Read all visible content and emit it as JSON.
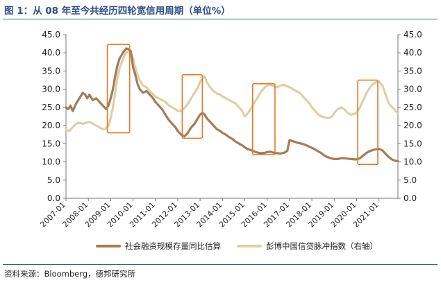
{
  "header": {
    "title": "图 1：从 08 年至今共经历四轮宽信用周期（单位%）"
  },
  "footer": {
    "source": "资料来源：Bloomberg，德邦研究所"
  },
  "colors": {
    "series1": "#a47c56",
    "series2": "#ddd0a4",
    "highlight": "#e8782a",
    "axis": "#777777",
    "header": "#2e4f8a"
  },
  "chart_data": {
    "type": "line",
    "title": "",
    "xlabel": "",
    "ylabel": "",
    "ylim_left": [
      0,
      45
    ],
    "ylim_right": [
      0,
      45
    ],
    "y_ticks_left": [
      "0.0",
      "5.0",
      "10.0",
      "15.0",
      "20.0",
      "25.0",
      "30.0",
      "35.0",
      "40.0",
      "45.0"
    ],
    "y_ticks_right": [
      "0.0",
      "5.0",
      "10.0",
      "15.0",
      "20.0",
      "25.0",
      "30.0",
      "35.0",
      "40.0",
      "45.0"
    ],
    "x_ticks": [
      "2007-01",
      "2008-01",
      "2009-01",
      "2010-01",
      "2011-01",
      "2012-01",
      "2013-01",
      "2014-01",
      "2015-01",
      "2016-01",
      "2017-01",
      "2018-01",
      "2019-01",
      "2020-01",
      "2021-01"
    ],
    "x_range": [
      2007.0,
      2021.85
    ],
    "legend_position": "bottom",
    "series": [
      {
        "name": "社会融资规模存量同比估算",
        "axis": "left",
        "points": [
          [
            2007.0,
            25
          ],
          [
            2007.1,
            24.5
          ],
          [
            2007.2,
            25.5
          ],
          [
            2007.3,
            24
          ],
          [
            2007.45,
            26
          ],
          [
            2007.6,
            27.5
          ],
          [
            2007.75,
            29
          ],
          [
            2007.85,
            28.5
          ],
          [
            2007.95,
            27.5
          ],
          [
            2008.05,
            28.5
          ],
          [
            2008.2,
            27
          ],
          [
            2008.35,
            27.5
          ],
          [
            2008.5,
            26.5
          ],
          [
            2008.65,
            25.5
          ],
          [
            2008.8,
            24.5
          ],
          [
            2008.9,
            25.5
          ],
          [
            2009.0,
            27.5
          ],
          [
            2009.1,
            30
          ],
          [
            2009.2,
            33.5
          ],
          [
            2009.3,
            36.5
          ],
          [
            2009.4,
            38.5
          ],
          [
            2009.5,
            39.5
          ],
          [
            2009.6,
            40.5
          ],
          [
            2009.7,
            41.2
          ],
          [
            2009.8,
            41
          ],
          [
            2009.9,
            40.5
          ],
          [
            2010.0,
            36
          ],
          [
            2010.1,
            34
          ],
          [
            2010.2,
            31.5
          ],
          [
            2010.3,
            30
          ],
          [
            2010.45,
            29
          ],
          [
            2010.6,
            29.5
          ],
          [
            2010.75,
            28.5
          ],
          [
            2010.9,
            27.5
          ],
          [
            2011.0,
            26.5
          ],
          [
            2011.15,
            25.5
          ],
          [
            2011.3,
            24.5
          ],
          [
            2011.45,
            23
          ],
          [
            2011.6,
            21.5
          ],
          [
            2011.75,
            20.5
          ],
          [
            2011.9,
            19.5
          ],
          [
            2012.0,
            18.5
          ],
          [
            2012.15,
            17.5
          ],
          [
            2012.3,
            17
          ],
          [
            2012.45,
            18
          ],
          [
            2012.6,
            19.5
          ],
          [
            2012.75,
            20.5
          ],
          [
            2012.9,
            22
          ],
          [
            2013.0,
            23
          ],
          [
            2013.1,
            23.5
          ],
          [
            2013.2,
            23
          ],
          [
            2013.3,
            22
          ],
          [
            2013.45,
            21
          ],
          [
            2013.6,
            20
          ],
          [
            2013.75,
            19
          ],
          [
            2013.9,
            18.5
          ],
          [
            2014.0,
            18
          ],
          [
            2014.15,
            17.5
          ],
          [
            2014.3,
            16.8
          ],
          [
            2014.45,
            16.3
          ],
          [
            2014.6,
            15.5
          ],
          [
            2014.75,
            15
          ],
          [
            2014.9,
            14.5
          ],
          [
            2015.0,
            14
          ],
          [
            2015.15,
            13.5
          ],
          [
            2015.3,
            13.2
          ],
          [
            2015.45,
            12.8
          ],
          [
            2015.6,
            12.5
          ],
          [
            2015.75,
            12.4
          ],
          [
            2015.9,
            12.5
          ],
          [
            2016.0,
            12.7
          ],
          [
            2016.15,
            12.8
          ],
          [
            2016.3,
            12.5
          ],
          [
            2016.45,
            12.4
          ],
          [
            2016.6,
            12.3
          ],
          [
            2016.75,
            12.5
          ],
          [
            2016.9,
            13
          ],
          [
            2017.0,
            16
          ],
          [
            2017.1,
            15.8
          ],
          [
            2017.25,
            15.5
          ],
          [
            2017.4,
            15.2
          ],
          [
            2017.55,
            15
          ],
          [
            2017.7,
            14.7
          ],
          [
            2017.85,
            14.3
          ],
          [
            2017.95,
            14
          ],
          [
            2018.1,
            13.6
          ],
          [
            2018.25,
            13
          ],
          [
            2018.4,
            12.5
          ],
          [
            2018.55,
            11.8
          ],
          [
            2018.7,
            11.3
          ],
          [
            2018.85,
            11
          ],
          [
            2019.0,
            10.8
          ],
          [
            2019.15,
            10.8
          ],
          [
            2019.3,
            11
          ],
          [
            2019.45,
            11
          ],
          [
            2019.6,
            10.9
          ],
          [
            2019.75,
            10.8
          ],
          [
            2019.9,
            10.7
          ],
          [
            2020.0,
            10.7
          ],
          [
            2020.15,
            11
          ],
          [
            2020.3,
            11.8
          ],
          [
            2020.45,
            12.5
          ],
          [
            2020.6,
            13
          ],
          [
            2020.75,
            13.3
          ],
          [
            2020.9,
            13.5
          ],
          [
            2021.0,
            13.6
          ],
          [
            2021.15,
            13.2
          ],
          [
            2021.3,
            12.2
          ],
          [
            2021.45,
            11.3
          ],
          [
            2021.6,
            10.6
          ],
          [
            2021.75,
            10.3
          ],
          [
            2021.85,
            10.2
          ]
        ]
      },
      {
        "name": "彭博中国信贷脉冲指数（右轴）",
        "axis": "right",
        "points": [
          [
            2007.0,
            18.8
          ],
          [
            2007.15,
            18.5
          ],
          [
            2007.3,
            19.5
          ],
          [
            2007.45,
            20.5
          ],
          [
            2007.6,
            20.8
          ],
          [
            2007.75,
            20.5
          ],
          [
            2007.9,
            20.8
          ],
          [
            2008.05,
            21
          ],
          [
            2008.2,
            20.5
          ],
          [
            2008.35,
            20
          ],
          [
            2008.5,
            19.5
          ],
          [
            2008.65,
            19
          ],
          [
            2008.8,
            19.2
          ],
          [
            2008.9,
            20
          ],
          [
            2009.0,
            22
          ],
          [
            2009.1,
            25
          ],
          [
            2009.2,
            29
          ],
          [
            2009.3,
            33
          ],
          [
            2009.4,
            36
          ],
          [
            2009.5,
            37.5
          ],
          [
            2009.6,
            39
          ],
          [
            2009.7,
            40.2
          ],
          [
            2009.8,
            40.5
          ],
          [
            2009.9,
            40
          ],
          [
            2010.0,
            38.5
          ],
          [
            2010.1,
            36
          ],
          [
            2010.2,
            34
          ],
          [
            2010.3,
            32.5
          ],
          [
            2010.45,
            31
          ],
          [
            2010.6,
            30.5
          ],
          [
            2010.75,
            29.5
          ],
          [
            2010.9,
            28.5
          ],
          [
            2011.0,
            28
          ],
          [
            2011.15,
            27.5
          ],
          [
            2011.3,
            27
          ],
          [
            2011.45,
            26.5
          ],
          [
            2011.6,
            25.5
          ],
          [
            2011.75,
            25
          ],
          [
            2011.9,
            24.5
          ],
          [
            2012.0,
            24
          ],
          [
            2012.15,
            24
          ],
          [
            2012.3,
            24.8
          ],
          [
            2012.45,
            26
          ],
          [
            2012.6,
            27.5
          ],
          [
            2012.75,
            29
          ],
          [
            2012.9,
            30.5
          ],
          [
            2013.0,
            32
          ],
          [
            2013.1,
            33
          ],
          [
            2013.2,
            33.5
          ],
          [
            2013.3,
            32
          ],
          [
            2013.45,
            30.5
          ],
          [
            2013.6,
            29.5
          ],
          [
            2013.75,
            28.8
          ],
          [
            2013.9,
            28.5
          ],
          [
            2014.0,
            28
          ],
          [
            2014.15,
            27.5
          ],
          [
            2014.3,
            27
          ],
          [
            2014.45,
            26.5
          ],
          [
            2014.6,
            26
          ],
          [
            2014.75,
            25
          ],
          [
            2014.9,
            23.8
          ],
          [
            2015.0,
            22.5
          ],
          [
            2015.15,
            23.5
          ],
          [
            2015.3,
            25
          ],
          [
            2015.45,
            26.5
          ],
          [
            2015.6,
            28
          ],
          [
            2015.75,
            29.5
          ],
          [
            2015.9,
            30.5
          ],
          [
            2016.0,
            31
          ],
          [
            2016.15,
            31.2
          ],
          [
            2016.3,
            30.8
          ],
          [
            2016.45,
            30.5
          ],
          [
            2016.6,
            31
          ],
          [
            2016.75,
            31.2
          ],
          [
            2016.9,
            30.8
          ],
          [
            2017.0,
            30.5
          ],
          [
            2017.15,
            30
          ],
          [
            2017.3,
            29.5
          ],
          [
            2017.45,
            29
          ],
          [
            2017.6,
            28
          ],
          [
            2017.75,
            27
          ],
          [
            2017.9,
            26
          ],
          [
            2018.0,
            25
          ],
          [
            2018.15,
            24
          ],
          [
            2018.3,
            23
          ],
          [
            2018.45,
            22.5
          ],
          [
            2018.6,
            22.2
          ],
          [
            2018.75,
            22
          ],
          [
            2018.9,
            22.5
          ],
          [
            2019.0,
            23.5
          ],
          [
            2019.15,
            24.5
          ],
          [
            2019.3,
            25
          ],
          [
            2019.45,
            24.5
          ],
          [
            2019.6,
            23.5
          ],
          [
            2019.75,
            23
          ],
          [
            2019.9,
            23.2
          ],
          [
            2020.0,
            23.5
          ],
          [
            2020.15,
            25
          ],
          [
            2020.3,
            27
          ],
          [
            2020.45,
            29
          ],
          [
            2020.6,
            30.5
          ],
          [
            2020.75,
            31.5
          ],
          [
            2020.9,
            32
          ],
          [
            2021.0,
            32.2
          ],
          [
            2021.15,
            31
          ],
          [
            2021.3,
            28.5
          ],
          [
            2021.45,
            26
          ],
          [
            2021.6,
            25
          ],
          [
            2021.75,
            24
          ],
          [
            2021.85,
            23.5
          ]
        ]
      }
    ],
    "highlights": [
      {
        "x0": 2008.85,
        "x1": 2009.85,
        "y0": 18,
        "y1": 42.3
      },
      {
        "x0": 2012.2,
        "x1": 2013.1,
        "y0": 16.5,
        "y1": 34
      },
      {
        "x0": 2015.35,
        "x1": 2016.35,
        "y0": 12,
        "y1": 31.5
      },
      {
        "x0": 2020.05,
        "x1": 2020.95,
        "y0": 9.3,
        "y1": 32.5
      }
    ]
  }
}
